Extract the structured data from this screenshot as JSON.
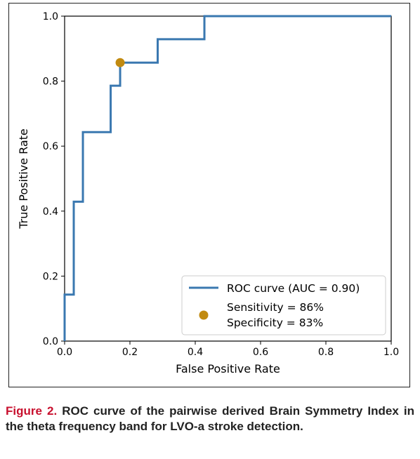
{
  "chart_data": {
    "type": "line",
    "xlabel": "False Positive Rate",
    "ylabel": "True Positive Rate",
    "xlim": [
      0,
      1
    ],
    "ylim": [
      0,
      1
    ],
    "xticks": [
      "0.0",
      "0.2",
      "0.4",
      "0.6",
      "0.8",
      "1.0"
    ],
    "yticks": [
      "0.0",
      "0.2",
      "0.4",
      "0.6",
      "0.8",
      "1.0"
    ],
    "grid": false,
    "legend_position": "lower-right",
    "series": [
      {
        "name": "ROC curve (AUC = 0.90)",
        "color": "#3a78b0",
        "x": [
          0,
          0,
          0.028,
          0.028,
          0.056,
          0.056,
          0.141,
          0.141,
          0.17,
          0.17,
          0.285,
          0.285,
          0.428,
          0.428,
          1.0
        ],
        "y": [
          0,
          0.143,
          0.143,
          0.429,
          0.429,
          0.643,
          0.643,
          0.786,
          0.786,
          0.857,
          0.857,
          0.929,
          0.929,
          1.0,
          1.0
        ]
      }
    ],
    "point": {
      "x": 0.17,
      "y": 0.857,
      "color": "#c18a10",
      "label_lines": [
        "Sensitivity = 86%",
        "Specificity = 83%"
      ]
    }
  },
  "caption": {
    "label": "Figure 2.",
    "text": "ROC curve of the pairwise derived Brain Symmetry Index in the theta frequency band for LVO-a stroke detection."
  }
}
